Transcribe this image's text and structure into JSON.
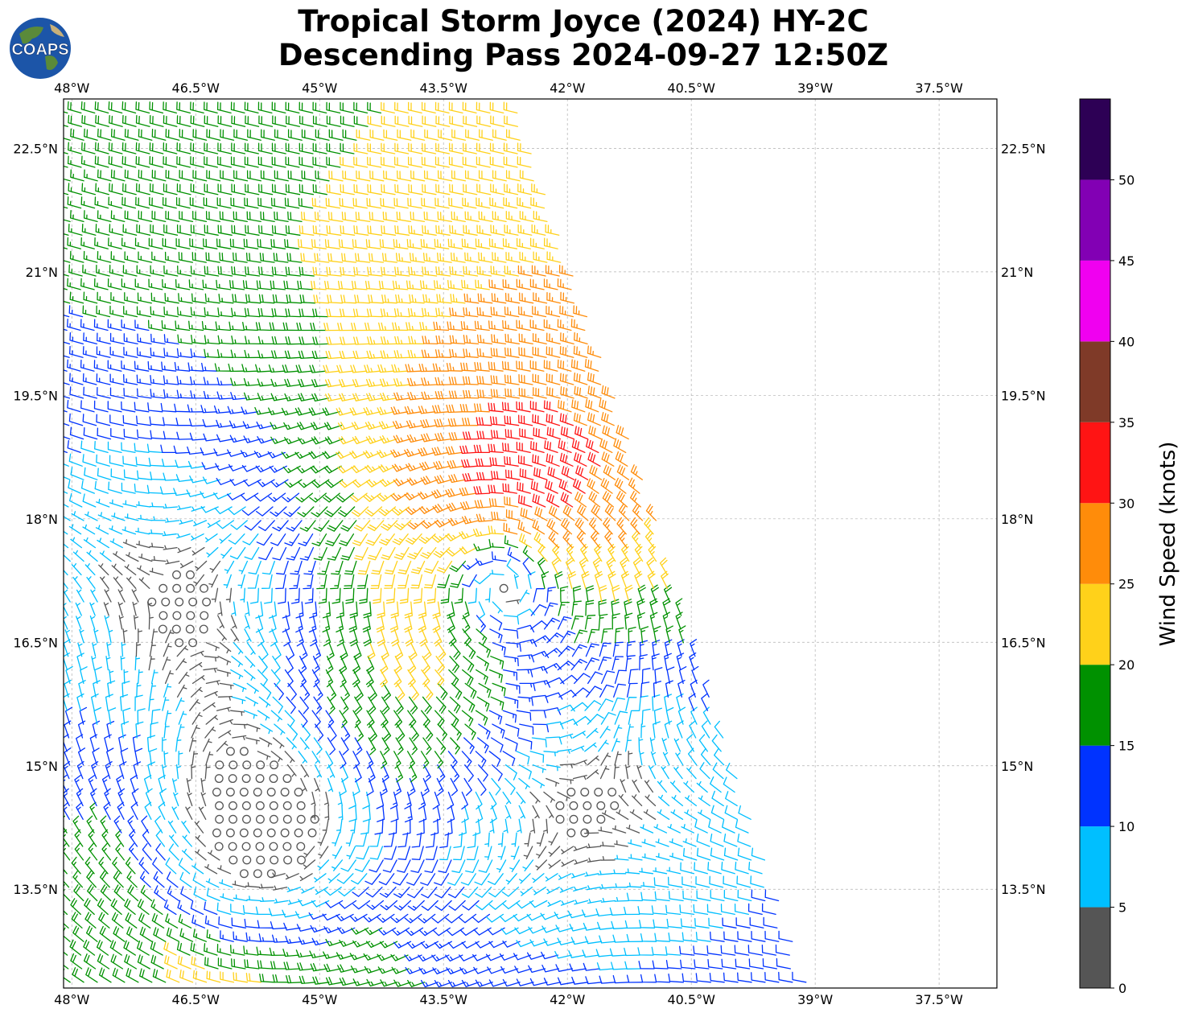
{
  "title": {
    "line1": "Tropical Storm Joyce (2024) HY-2C",
    "line2": "Descending Pass 2024-09-27 12:50Z"
  },
  "logo": {
    "text": "COAPS"
  },
  "chart_data": {
    "type": "wind-barb-map",
    "x_ticks": [
      "48°W",
      "46.5°W",
      "45°W",
      "43.5°W",
      "42°W",
      "40.5°W",
      "39°W",
      "37.5°W"
    ],
    "y_ticks": [
      "22.5°N",
      "21°N",
      "19.5°N",
      "18°N",
      "16.5°N",
      "15°N",
      "13.5°N"
    ],
    "lon_range": [
      -48.1,
      -36.8
    ],
    "lat_range": [
      12.3,
      23.1
    ],
    "grid": true,
    "swath": {
      "top_right_lon": -42.6,
      "bottom_right_lon": -39.1
    },
    "storm_center": {
      "lon": -42.8,
      "lat": 17.3
    },
    "secondary_low_center": {
      "lon": -45.7,
      "lat": 14.2
    },
    "colorbar": {
      "label": "Wind Speed (knots)",
      "ticks": [
        0,
        5,
        10,
        15,
        20,
        25,
        30,
        35,
        40,
        45,
        50
      ],
      "ranges": [
        {
          "min": 0,
          "max": 5,
          "color": "#555555"
        },
        {
          "min": 5,
          "max": 10,
          "color": "#00bfff"
        },
        {
          "min": 10,
          "max": 15,
          "color": "#0033ff"
        },
        {
          "min": 15,
          "max": 20,
          "color": "#009100"
        },
        {
          "min": 20,
          "max": 25,
          "color": "#ffd11a"
        },
        {
          "min": 25,
          "max": 30,
          "color": "#ff8c0a"
        },
        {
          "min": 30,
          "max": 35,
          "color": "#ff1414"
        },
        {
          "min": 35,
          "max": 40,
          "color": "#7f3a28"
        },
        {
          "min": 40,
          "max": 45,
          "color": "#f000f0"
        },
        {
          "min": 45,
          "max": 50,
          "color": "#8200b4"
        },
        {
          "min": 50,
          "max": 55,
          "color": "#2d0055"
        }
      ]
    }
  }
}
